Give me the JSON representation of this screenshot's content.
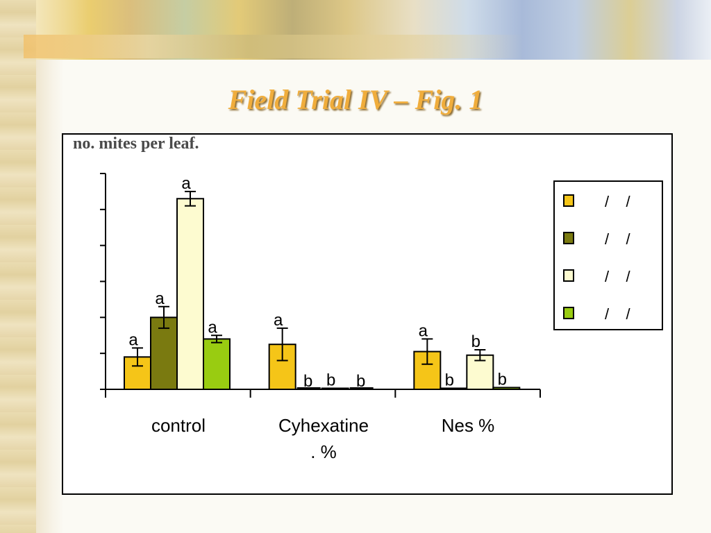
{
  "slide": {
    "title": "Field Trial IV – Fig. 1"
  },
  "chart_data": {
    "type": "bar",
    "ylabel": "no. mites per leaf.",
    "categories": [
      {
        "line1": "control",
        "line2": ""
      },
      {
        "line1": "Cyhexatine",
        "line2": ".    %"
      },
      {
        "line1": "Nes    %",
        "line2": ""
      }
    ],
    "series": [
      {
        "legend": "/    /",
        "color": "#f5c518",
        "values": [
          0.9,
          1.25,
          1.05
        ],
        "errors": [
          0.25,
          0.45,
          0.35
        ],
        "letters": [
          "a",
          "a",
          "a"
        ]
      },
      {
        "legend": "/    /",
        "color": "#7a7a10",
        "values": [
          2.0,
          0.02,
          0.03
        ],
        "errors": [
          0.3,
          0.0,
          0.0
        ],
        "letters": [
          "a",
          "b",
          "b"
        ]
      },
      {
        "legend": "/    /",
        "color": "#fdfbd0",
        "values": [
          5.3,
          0.03,
          0.95
        ],
        "errors": [
          0.2,
          0.0,
          0.15
        ],
        "letters": [
          "a",
          "b",
          "b"
        ]
      },
      {
        "legend": "/    /",
        "color": "#99cc11",
        "values": [
          1.4,
          0.02,
          0.05
        ],
        "errors": [
          0.1,
          0.0,
          0.0
        ],
        "letters": [
          "a",
          "b",
          "b"
        ]
      }
    ],
    "ylim": [
      0,
      6
    ],
    "yticks": 7,
    "grid": false,
    "legend_position": "right"
  }
}
